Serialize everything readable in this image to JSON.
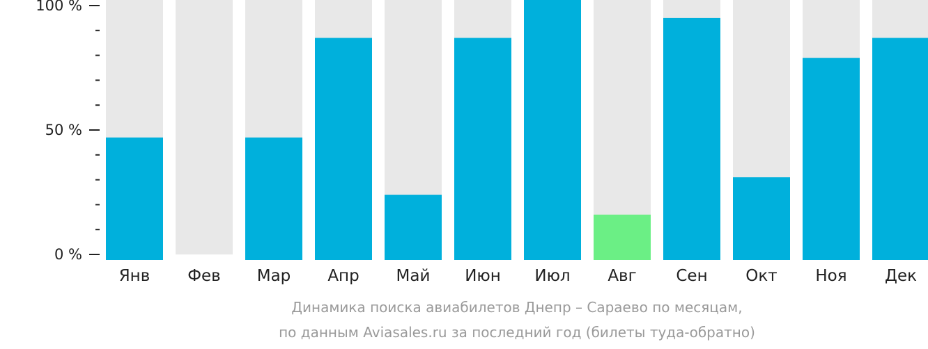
{
  "chart_data": {
    "type": "bar",
    "categories": [
      "Янв",
      "Фев",
      "Мар",
      "Апр",
      "Май",
      "Июн",
      "Июл",
      "Авг",
      "Сен",
      "Окт",
      "Ноя",
      "Дек"
    ],
    "values": [
      47,
      0,
      47,
      87,
      24,
      87,
      100,
      16,
      95,
      31,
      79,
      87
    ],
    "highlight_category": "Авг",
    "ylim": [
      0,
      100
    ],
    "y_ticks": [
      "0 %",
      "50 %",
      "100 %"
    ],
    "grid": false,
    "legend": "none",
    "colors": {
      "bar": "#00b0dc",
      "highlight": "#6bef85",
      "track": "#e8e8e8",
      "axis": "#222222"
    }
  },
  "caption": {
    "line1": "Динамика поиска авиабилетов Днепр – Сараево по месяцам,",
    "line2": "по данным Aviasales.ru за последний год (билеты туда-обратно)"
  }
}
